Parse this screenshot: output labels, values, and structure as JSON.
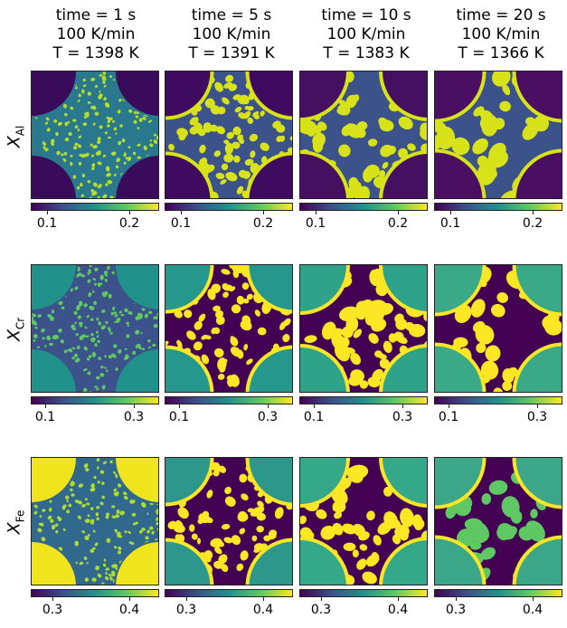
{
  "columns": [
    {
      "time": "time = 1 s",
      "rate": "100 K/min",
      "temp": "T = 1398 K"
    },
    {
      "time": "time = 5 s",
      "rate": "100 K/min",
      "temp": "T = 1391 K"
    },
    {
      "time": "time = 10 s",
      "rate": "100 K/min",
      "temp": "T = 1383 K"
    },
    {
      "time": "time = 20 s",
      "rate": "100 K/min",
      "temp": "T = 1366 K"
    }
  ],
  "rows": [
    {
      "symbol": "X",
      "element": "Al",
      "ticks": [
        "0.1",
        "0.2"
      ]
    },
    {
      "symbol": "X",
      "element": "Cr",
      "ticks": [
        "0.1",
        "0.3"
      ]
    },
    {
      "symbol": "X",
      "element": "Fe",
      "ticks": [
        "0.3",
        "0.4"
      ]
    }
  ],
  "colormap": {
    "name": "viridis",
    "stops": [
      "#440154",
      "#3b528b",
      "#21918c",
      "#5ec962",
      "#fde725"
    ]
  }
}
